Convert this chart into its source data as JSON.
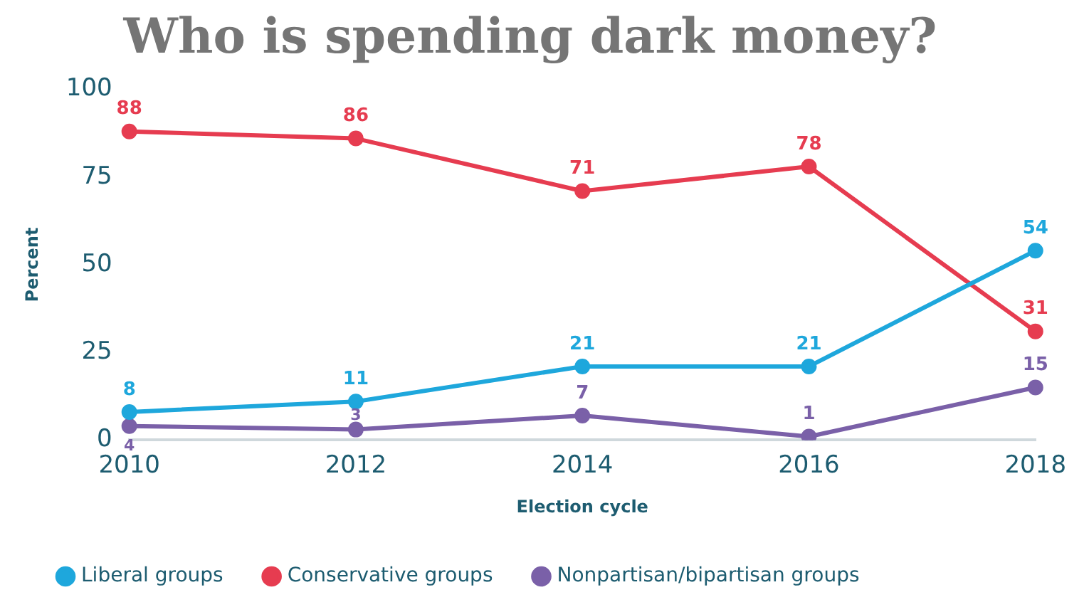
{
  "chart_data": {
    "type": "line",
    "title": "Who is spending dark money?",
    "xlabel": "Election cycle",
    "ylabel": "Percent",
    "categories": [
      "2010",
      "2012",
      "2014",
      "2016",
      "2018"
    ],
    "series": [
      {
        "name": "Liberal groups",
        "color": "#1ea7dc",
        "values": [
          8,
          11,
          21,
          21,
          54
        ]
      },
      {
        "name": "Conservative groups",
        "color": "#e63c50",
        "values": [
          88,
          86,
          71,
          78,
          31
        ]
      },
      {
        "name": "Nonpartisan/bipartisan groups",
        "color": "#7a60a8",
        "values": [
          4,
          3,
          7,
          1,
          15
        ]
      }
    ],
    "ylim": [
      0,
      100
    ],
    "yticks": [
      0,
      25,
      50,
      75,
      100
    ],
    "grid": false,
    "legend": "bottom",
    "marker": "circle",
    "line_style": "solid",
    "data_labels": true
  }
}
